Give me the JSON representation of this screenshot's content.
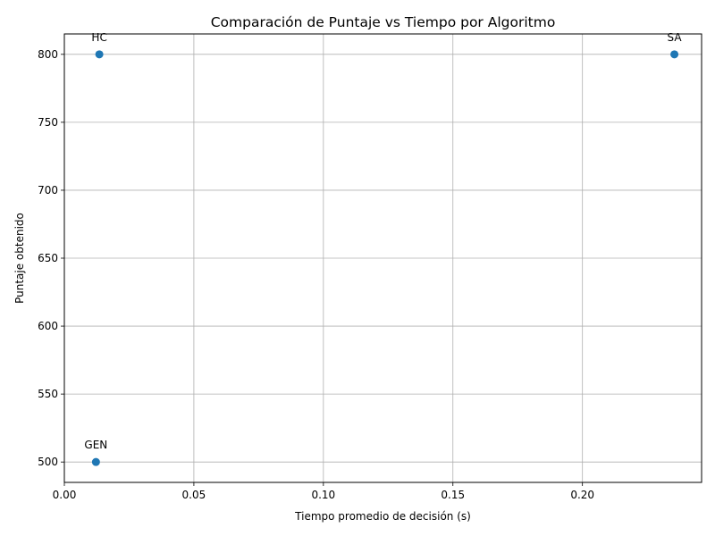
{
  "chart_data": {
    "type": "scatter",
    "title": "Comparación de Puntaje vs Tiempo por Algoritmo",
    "xlabel": "Tiempo promedio de decisión (s)",
    "ylabel": "Puntaje obtenido",
    "xlim": [
      0.0,
      0.246
    ],
    "ylim": [
      485,
      815
    ],
    "xticks": [
      0.0,
      0.05,
      0.1,
      0.15,
      0.2
    ],
    "xtick_labels": [
      "0.00",
      "0.05",
      "0.10",
      "0.15",
      "0.20"
    ],
    "yticks": [
      500,
      550,
      600,
      650,
      700,
      750,
      800
    ],
    "ytick_labels": [
      "500",
      "550",
      "600",
      "650",
      "700",
      "750",
      "800"
    ],
    "grid": true,
    "point_color": "#1f77b4",
    "points": [
      {
        "label": "HC",
        "x": 0.0135,
        "y": 800
      },
      {
        "label": "SA",
        "x": 0.2355,
        "y": 800
      },
      {
        "label": "GEN",
        "x": 0.0122,
        "y": 500
      }
    ]
  }
}
